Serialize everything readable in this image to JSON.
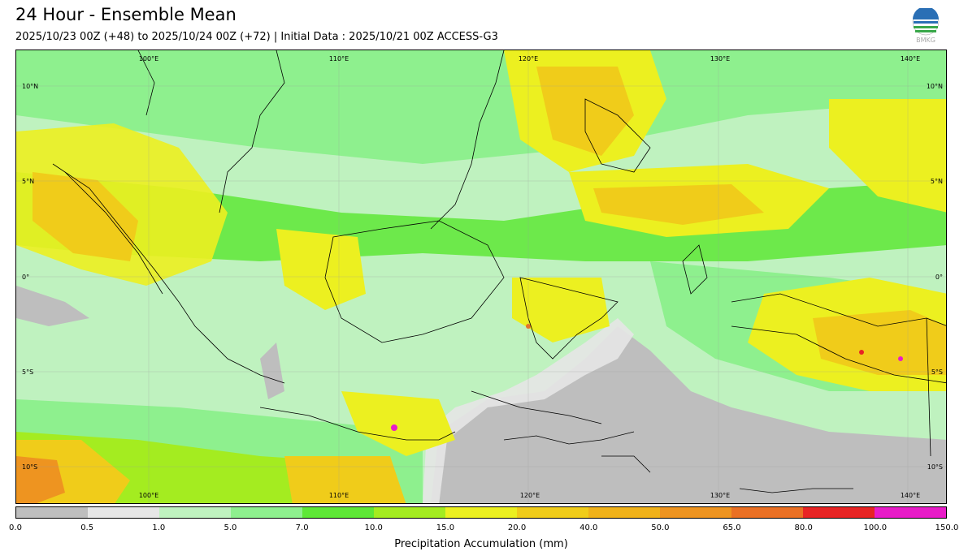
{
  "title": "24 Hour - Ensemble Mean",
  "subtitle": "2025/10/23 00Z (+48) to 2025/10/24 00Z (+72) | Initial Data : 2025/10/21 00Z ACCESS-G3",
  "logo": {
    "icon": "bmkg-logo-icon",
    "text": "BMKG"
  },
  "map": {
    "lon_labels": [
      "100°E",
      "110°E",
      "120°E",
      "130°E",
      "140°E"
    ],
    "lat_labels": [
      "10°N",
      "5°N",
      "0°",
      "5°S",
      "10°S"
    ]
  },
  "colorbar": {
    "title": "Precipitation Accumulation (mm)",
    "ticks": [
      "0.0",
      "0.5",
      "1.0",
      "5.0",
      "7.0",
      "10.0",
      "15.0",
      "20.0",
      "40.0",
      "50.0",
      "65.0",
      "80.0",
      "100.0",
      "150.0"
    ],
    "colors": [
      "#bebebe",
      "#e6e6e6",
      "#bff2bf",
      "#8ef08e",
      "#5ee836",
      "#a4ec20",
      "#ecf020",
      "#f0cc1a",
      "#f0b21a",
      "#ee9420",
      "#ea7024",
      "#e82424",
      "#e81cc8"
    ]
  }
}
